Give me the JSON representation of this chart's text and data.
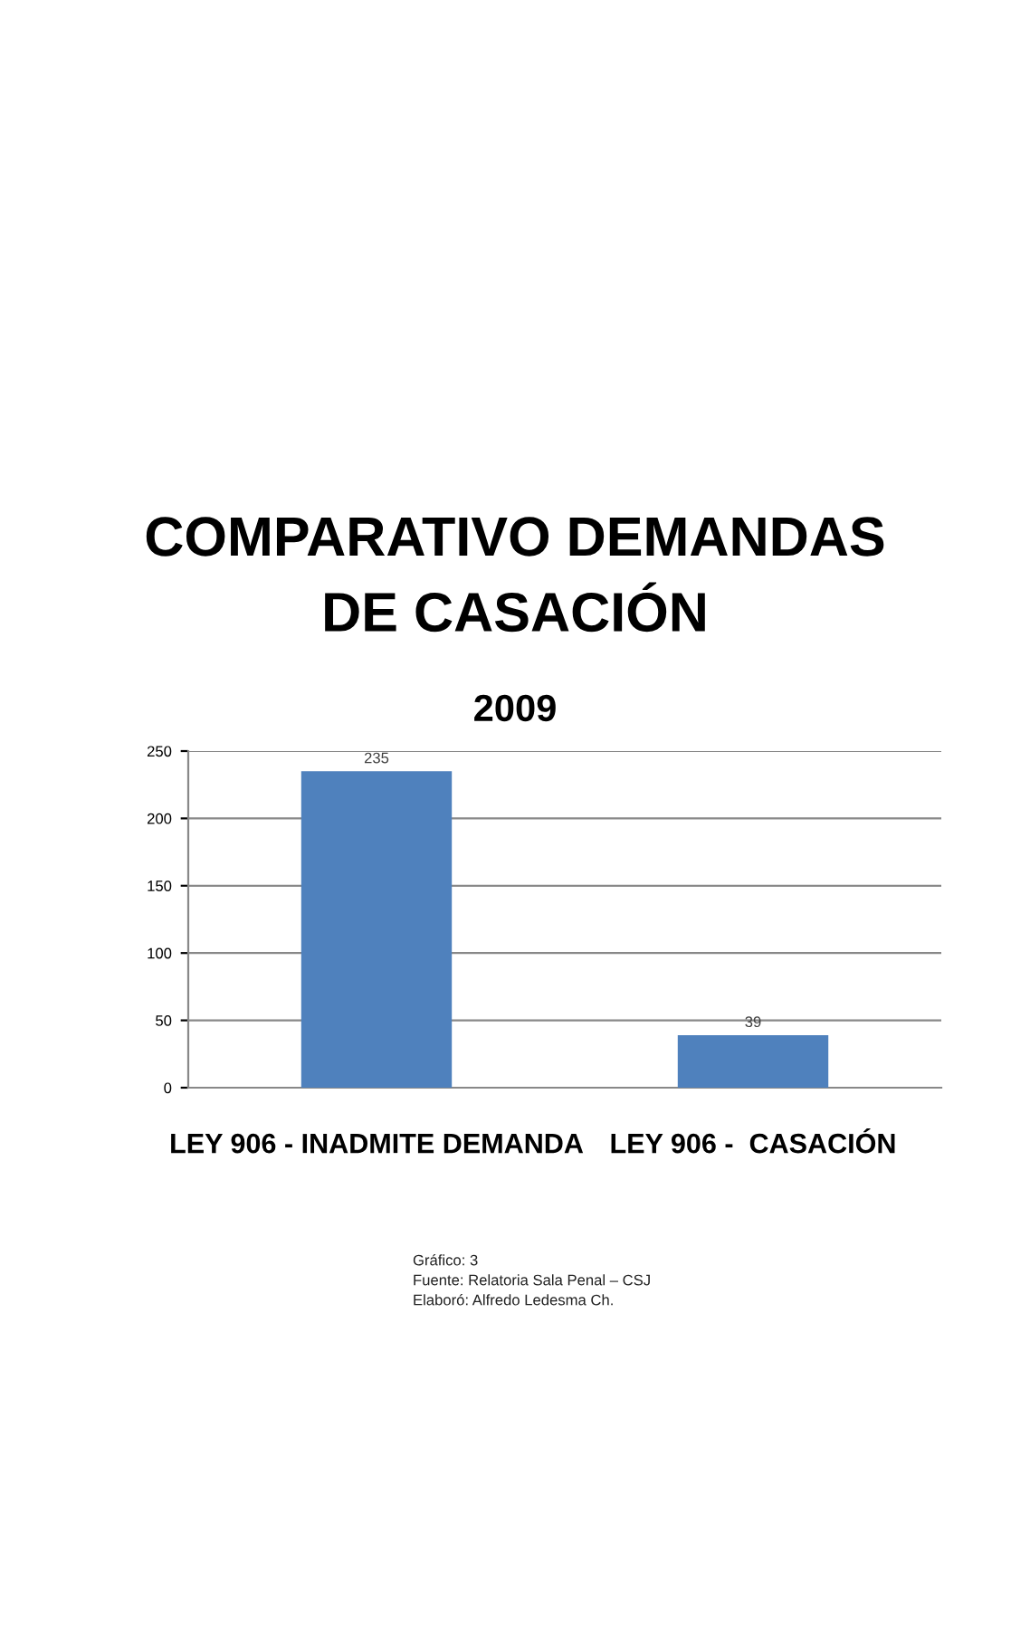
{
  "chart_data": {
    "type": "bar",
    "title": "COMPARATIVO DEMANDAS\nDE CASACIÓN",
    "subtitle": "2009",
    "categories": [
      "LEY 906 - INADMITE DEMANDA",
      "LEY 906 -  CASACIÓN"
    ],
    "values": [
      235,
      39
    ],
    "color": "#4f81bd",
    "ylim": [
      0,
      250
    ],
    "yticks": [
      0,
      50,
      100,
      150,
      200,
      250
    ],
    "grid": "y",
    "data_labels": true,
    "annotations": [
      "Gráfico: 3",
      "Fuente: Relatoria Sala Penal – CSJ",
      "Elaboró: Alfredo Ledesma Ch."
    ]
  }
}
